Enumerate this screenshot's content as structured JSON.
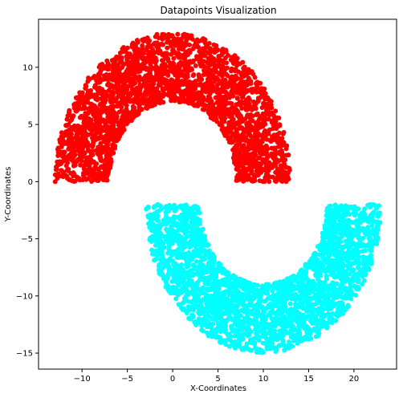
{
  "chart_data": {
    "type": "scatter",
    "title": "Datapoints Visualization",
    "xlabel": "X-Coordinates",
    "ylabel": "Y-Coordinates",
    "xlim": [
      -14.8,
      24.7
    ],
    "ylim": [
      -16.4,
      14.2
    ],
    "xticks": [
      -10,
      -5,
      0,
      5,
      10,
      15,
      20
    ],
    "yticks": [
      -15,
      -10,
      -5,
      0,
      5,
      10
    ],
    "xtick_labels": [
      "−10",
      "−5",
      "0",
      "5",
      "10",
      "15",
      "20"
    ],
    "ytick_labels": [
      "−15",
      "−10",
      "−5",
      "0",
      "5",
      "10"
    ],
    "grid": false,
    "series": [
      {
        "color": "#ff0000",
        "shape": "upper half-ring",
        "center": [
          0,
          0
        ],
        "inner_radius": 7,
        "outer_radius": 13,
        "x_range": [
          -13,
          13
        ],
        "y_range": [
          0,
          13
        ]
      },
      {
        "color": "#00ffff",
        "shape": "lower half-ring",
        "center": [
          10,
          -2
        ],
        "inner_radius": 7,
        "outer_radius": 13,
        "x_range": [
          -3,
          23
        ],
        "y_range": [
          -15,
          -2
        ]
      }
    ]
  }
}
